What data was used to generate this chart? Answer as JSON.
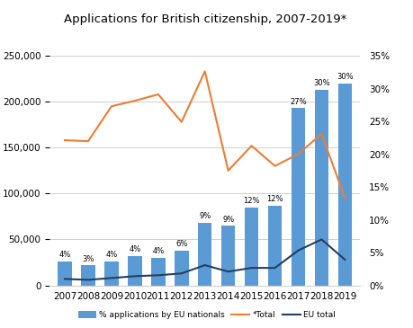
{
  "title": "Applications for British citizenship, 2007-2019*",
  "years": [
    2007,
    2008,
    2009,
    2010,
    2011,
    2012,
    2013,
    2014,
    2015,
    2016,
    2017,
    2018,
    2019
  ],
  "bar_values": [
    26000,
    22000,
    26000,
    32000,
    30000,
    38000,
    68000,
    65000,
    85000,
    87000,
    193000,
    213000,
    220000
  ],
  "total_line": [
    158000,
    157000,
    195000,
    201000,
    208000,
    178000,
    233000,
    125000,
    152000,
    130000,
    143000,
    165000,
    95000
  ],
  "eu_total_line": [
    7000,
    6000,
    8000,
    10000,
    11000,
    13000,
    22000,
    15000,
    19000,
    19000,
    38000,
    50000,
    28000
  ],
  "pct_labels": [
    "4%",
    "3%",
    "4%",
    "4%",
    "4%",
    "6%",
    "9%",
    "9%",
    "12%",
    "12%",
    "27%",
    "30%",
    "30%"
  ],
  "bar_color": "#5B9BD5",
  "total_line_color": "#ED7D31",
  "eu_line_color": "#243F60",
  "ylim_left": [
    0,
    275000
  ],
  "ylim_right": [
    0,
    0.385
  ],
  "yticks_left": [
    0,
    50000,
    100000,
    150000,
    200000,
    250000
  ],
  "yticks_right": [
    0.0,
    0.05,
    0.1,
    0.15,
    0.2,
    0.25,
    0.3,
    0.35
  ],
  "ytick_labels_right": [
    "0%",
    "5%",
    "10%",
    "15%",
    "20%",
    "25%",
    "30%",
    "35%"
  ],
  "legend_labels": [
    "% applications by EU nationals",
    "*Total",
    "EU total"
  ],
  "background_color": "#FFFFFF",
  "grid_color": "#D0D0D0"
}
